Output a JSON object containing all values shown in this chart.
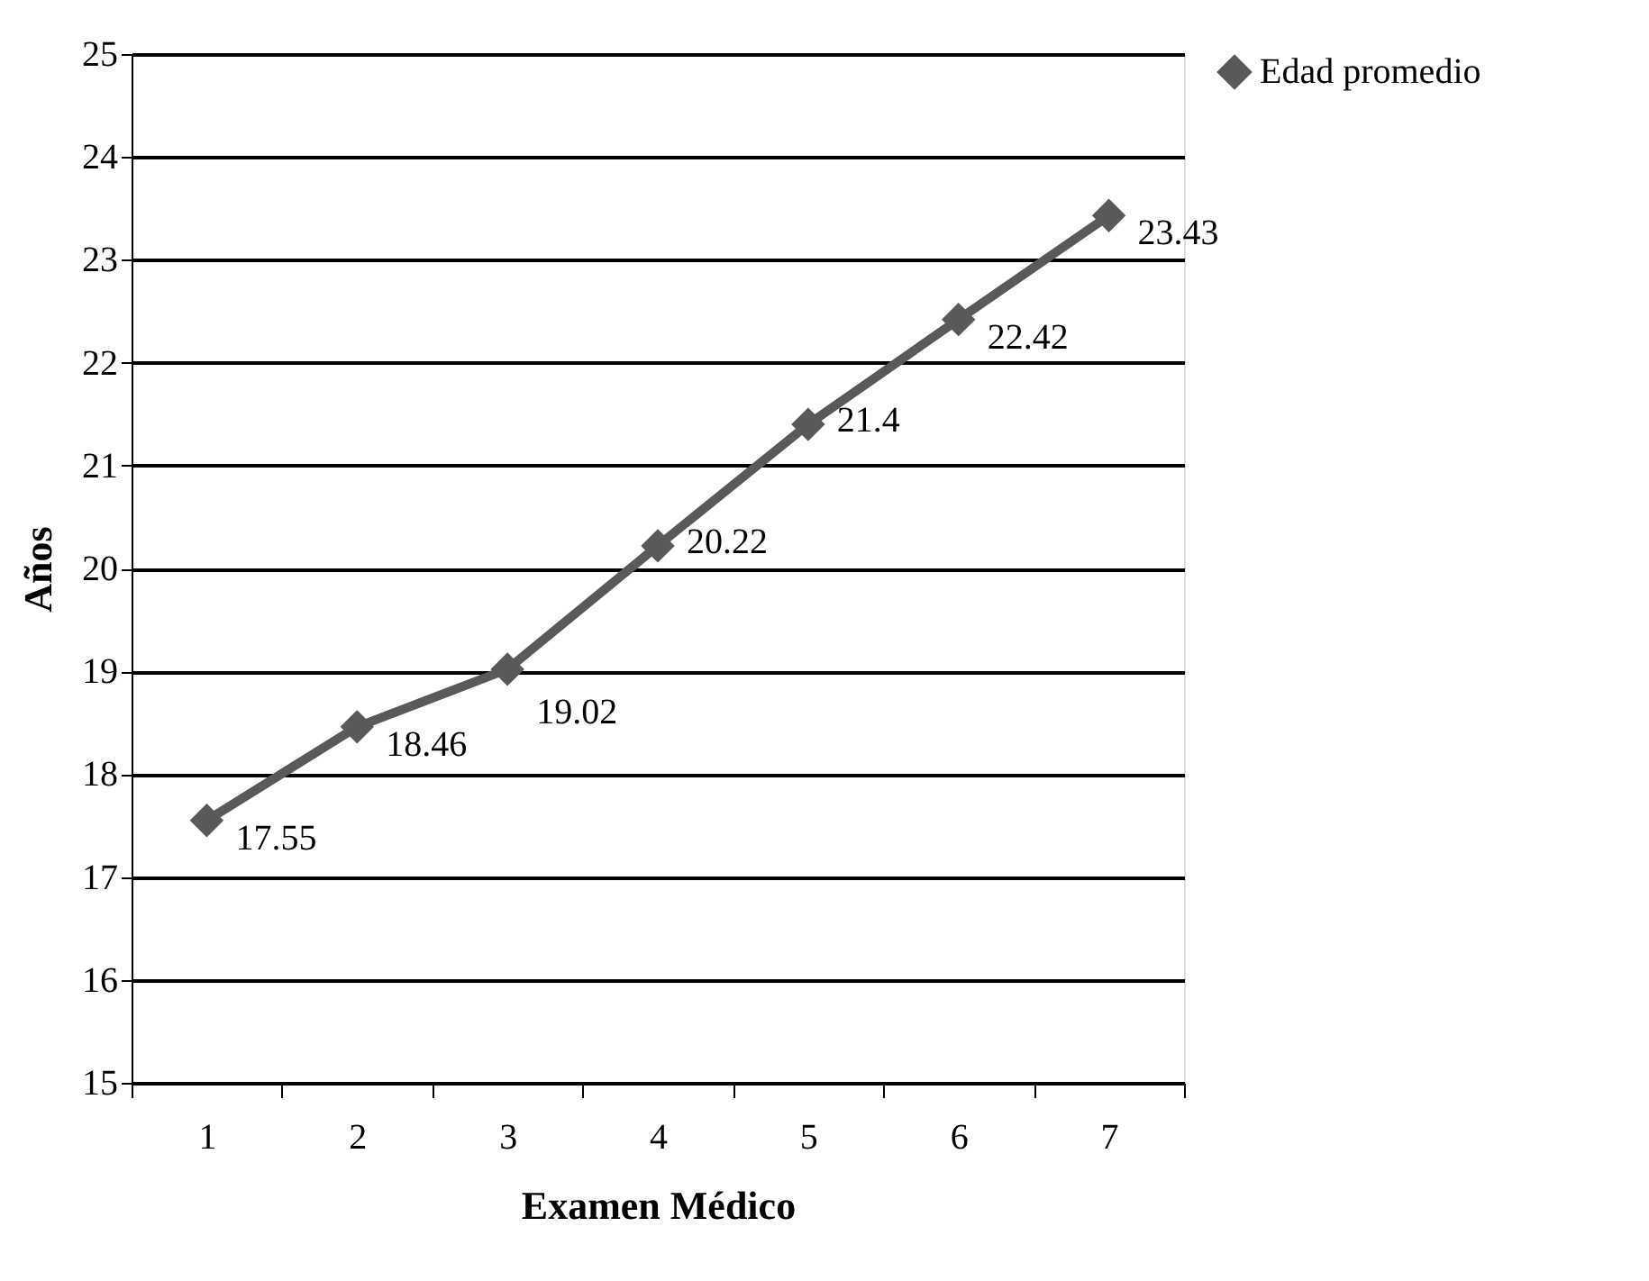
{
  "chart_data": {
    "type": "line",
    "xlabel": "Examen Médico",
    "ylabel": "Años",
    "categories": [
      "1",
      "2",
      "3",
      "4",
      "5",
      "6",
      "7"
    ],
    "series": [
      {
        "name": "Edad promedio",
        "color": "#595959",
        "values": [
          17.55,
          18.46,
          19.02,
          20.22,
          21.4,
          22.42,
          23.43
        ]
      }
    ],
    "ylim": [
      15,
      25
    ],
    "yticks": [
      15,
      16,
      17,
      18,
      19,
      20,
      21,
      22,
      23,
      24,
      25
    ],
    "grid": "y",
    "legend": "right",
    "marker": "diamond",
    "line_style": "solid",
    "data_labels": true
  }
}
